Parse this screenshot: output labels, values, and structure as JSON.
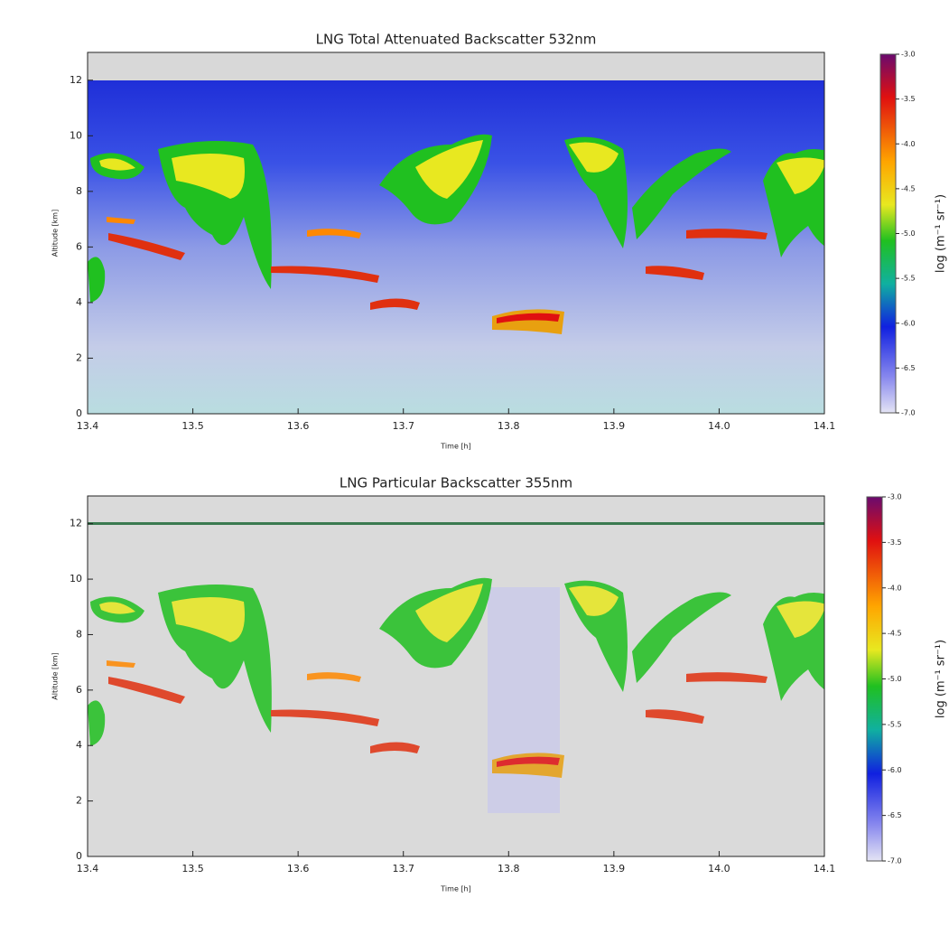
{
  "chart_data": [
    {
      "type": "heatmap",
      "title": "LNG Total Attenuated Backscatter 532nm",
      "x_label": "Time [h]",
      "y_label": "Altitude [km]",
      "xlim": [
        13.4,
        14.1
      ],
      "xticks": [
        13.4,
        13.5,
        13.6,
        13.7,
        13.8,
        13.9,
        {
          "value": 14.0,
          "label": "14.0"
        },
        14.1
      ],
      "ylim": [
        0,
        13
      ],
      "yticks": [
        0,
        2,
        4,
        6,
        8,
        10,
        12
      ],
      "colorbar": {
        "label": "log (m⁻¹ sr⁻¹)",
        "lim": [
          -7,
          -3
        ],
        "ticks": [
          {
            "value": -3,
            "label": "-3.0"
          },
          -3.5,
          {
            "value": -4,
            "label": "-4.0"
          },
          -4.5,
          {
            "value": -5,
            "label": "-5.0"
          },
          -5.5,
          {
            "value": -6,
            "label": "-6.0"
          },
          -6.5,
          {
            "value": -7,
            "label": "-7.0"
          }
        ]
      }
    },
    {
      "type": "heatmap",
      "title": "LNG Particular Backscatter 355nm",
      "x_label": "Time [h]",
      "y_label": "Altitude [km]",
      "xlim": [
        13.4,
        14.1
      ],
      "xticks": [
        13.4,
        13.5,
        13.6,
        13.7,
        13.8,
        13.9,
        {
          "value": 14.0,
          "label": "14.0"
        },
        14.1
      ],
      "ylim": [
        0,
        13
      ],
      "yticks": [
        0,
        2,
        4,
        6,
        8,
        10,
        12
      ],
      "colorbar": {
        "label": "log (m⁻¹ sr⁻¹)",
        "lim": [
          -7,
          -3
        ],
        "ticks": [
          {
            "value": -3,
            "label": "-3.0"
          },
          -3.5,
          {
            "value": -4,
            "label": "-4.0"
          },
          -4.5,
          {
            "value": -5,
            "label": "-5.0"
          },
          -5.5,
          {
            "value": -6,
            "label": "-6.0"
          },
          -6.5,
          {
            "value": -7,
            "label": "-7.0"
          }
        ]
      }
    }
  ]
}
